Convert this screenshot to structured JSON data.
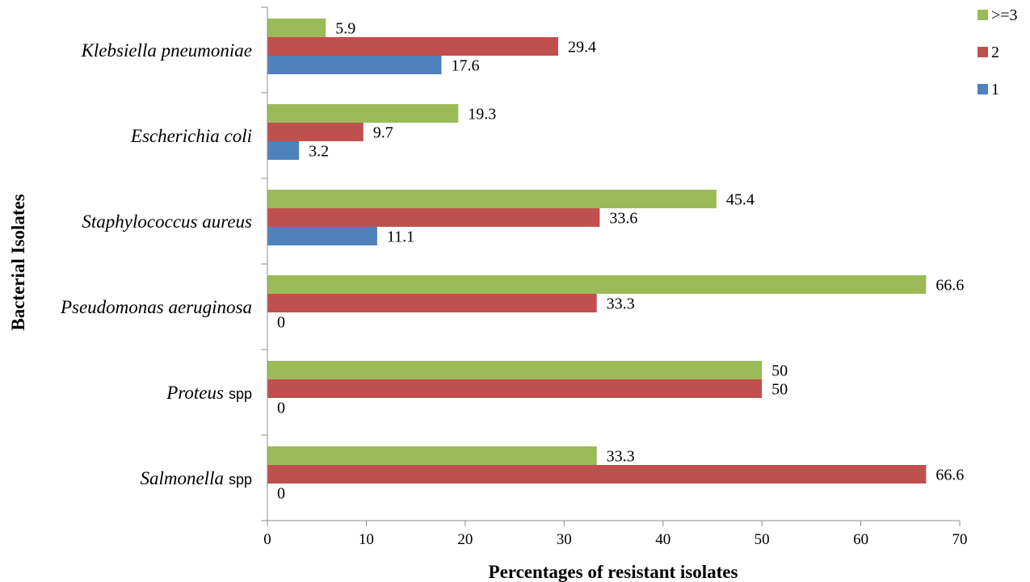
{
  "chart_data": {
    "type": "bar",
    "orientation": "horizontal",
    "categories": [
      {
        "name": "Klebsiella pneumoniae",
        "suffix": ""
      },
      {
        "name": "Escherichia coli",
        "suffix": ""
      },
      {
        "name": "Staphylococcus aureus",
        "suffix": ""
      },
      {
        "name": "Pseudomonas aeruginosa",
        "suffix": ""
      },
      {
        "name": "Proteus",
        "suffix": "spp"
      },
      {
        "name": "Salmonella",
        "suffix": "spp"
      }
    ],
    "series": [
      {
        "name": ">=3",
        "color": "#9bbb59",
        "values": [
          5.9,
          19.3,
          45.4,
          66.6,
          50,
          33.3
        ],
        "labels": [
          "5.9",
          "19.3",
          "45.4",
          "66.6",
          "50",
          "33.3"
        ]
      },
      {
        "name": "2",
        "color": "#c0504d",
        "values": [
          29.4,
          9.7,
          33.6,
          33.3,
          50,
          66.6
        ],
        "labels": [
          "29.4",
          "9.7",
          "33.6",
          "33.3",
          "50",
          "66.6"
        ]
      },
      {
        "name": "1",
        "color": "#4f81bd",
        "values": [
          17.6,
          3.2,
          11.1,
          0,
          0,
          0
        ],
        "labels": [
          "17.6",
          "3.2",
          "11.1",
          "0",
          "0",
          "0"
        ]
      }
    ],
    "xlim": [
      0,
      70
    ],
    "xticks": [
      0,
      10,
      20,
      30,
      40,
      50,
      60,
      70
    ],
    "xlabel": "Percentages of resistant isolates",
    "ylabel": "Bacterial Isolates",
    "legend_position": "top-right",
    "grid": false
  }
}
